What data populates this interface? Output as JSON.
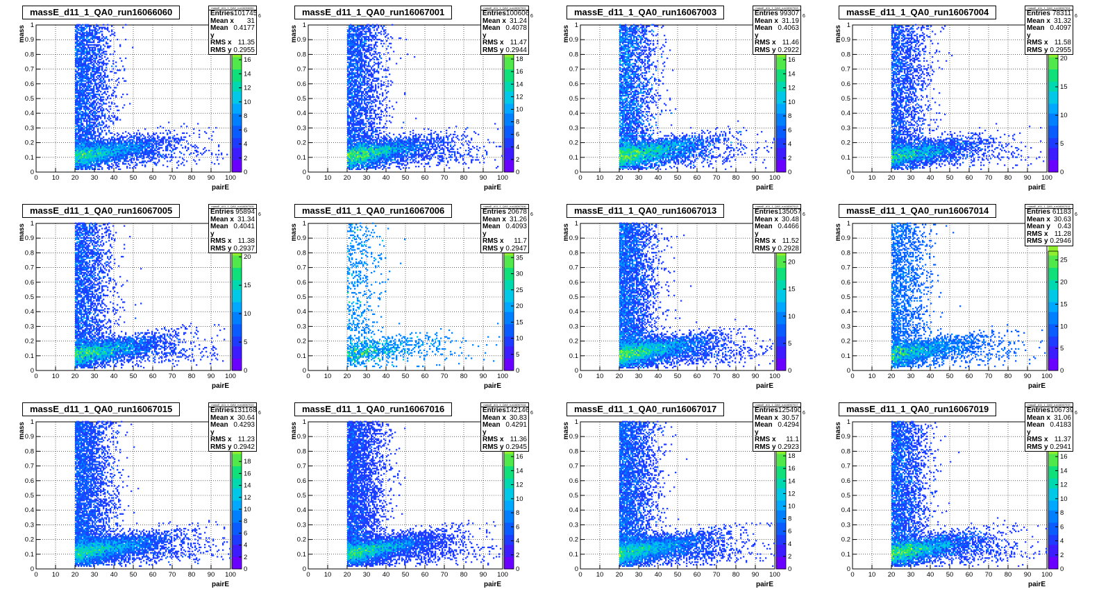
{
  "chart_data": [
    {
      "type": "heatmap",
      "title": "massE_d11_1_QA0_run16066060",
      "xlabel": "pairE",
      "ylabel": "mass",
      "xlim": [
        0,
        100
      ],
      "ylim": [
        0,
        1
      ],
      "stats": {
        "name": "massE_d11_1_QA0_run16066060",
        "entries": "101745",
        "mean_x": "31",
        "mean_y": "0.4177",
        "rms_x": "11.35",
        "rms_y": "0.2955"
      },
      "zmax": 17,
      "zticks": [
        0,
        2,
        4,
        6,
        8,
        10,
        12,
        14,
        16
      ],
      "z_exponent": "6"
    },
    {
      "type": "heatmap",
      "title": "massE_d11_1_QA0_run16067001",
      "xlabel": "pairE",
      "ylabel": "mass",
      "xlim": [
        0,
        100
      ],
      "ylim": [
        0,
        1
      ],
      "stats": {
        "name": "massE_d11_1_QA0_run16067001",
        "entries": "100606",
        "mean_x": "31.24",
        "mean_y": "0.4078",
        "rms_x": "11.47",
        "rms_y": "0.2944"
      },
      "zmax": 19,
      "zticks": [
        0,
        2,
        4,
        6,
        8,
        10,
        12,
        14,
        16,
        18
      ],
      "z_exponent": "6"
    },
    {
      "type": "heatmap",
      "title": "massE_d11_1_QA0_run16067003",
      "xlabel": "pairE",
      "ylabel": "mass",
      "xlim": [
        0,
        100
      ],
      "ylim": [
        0,
        1
      ],
      "stats": {
        "name": "massE_d11_1_QA0_run16067003",
        "entries": "99307",
        "mean_x": "31.19",
        "mean_y": "0.4063",
        "rms_x": "11.46",
        "rms_y": "0.2922"
      },
      "zmax": 17,
      "zticks": [
        0,
        2,
        4,
        6,
        8,
        10,
        12,
        14,
        16
      ],
      "z_exponent": "6"
    },
    {
      "type": "heatmap",
      "title": "massE_d11_1_QA0_run16067004",
      "xlabel": "pairE",
      "ylabel": "mass",
      "xlim": [
        0,
        100
      ],
      "ylim": [
        0,
        1
      ],
      "stats": {
        "name": "massE_d11_1_QA0_run16067004",
        "entries": "78311",
        "mean_x": "31.32",
        "mean_y": "0.4097",
        "rms_x": "11.58",
        "rms_y": "0.2955"
      },
      "zmax": 21,
      "zticks": [
        0,
        5,
        10,
        15,
        20
      ],
      "z_exponent": "6"
    },
    {
      "type": "heatmap",
      "title": "massE_d11_1_QA0_run16067005",
      "xlabel": "pairE",
      "ylabel": "mass",
      "xlim": [
        0,
        100
      ],
      "ylim": [
        0,
        1
      ],
      "stats": {
        "name": "massE_d11_1_QA0_run16067005",
        "entries": "95894",
        "mean_x": "31.34",
        "mean_y": "0.4041",
        "rms_x": "11.38",
        "rms_y": "0.2937"
      },
      "zmax": 21,
      "zticks": [
        0,
        5,
        10,
        15,
        20
      ],
      "z_exponent": "6"
    },
    {
      "type": "heatmap",
      "title": "massE_d11_1_QA0_run16067006",
      "xlabel": "pairE",
      "ylabel": "mass",
      "xlim": [
        0,
        100
      ],
      "ylim": [
        0,
        1
      ],
      "stats": {
        "name": "massE_d11_1_QA0_run16067006",
        "entries": "20678",
        "mean_x": "31.26",
        "mean_y": "0.4093",
        "rms_x": "11.7",
        "rms_y": "0.2947"
      },
      "zmax": 37,
      "zticks": [
        0,
        5,
        10,
        15,
        20,
        25,
        30,
        35
      ],
      "z_exponent": "6"
    },
    {
      "type": "heatmap",
      "title": "massE_d11_1_QA0_run16067013",
      "xlabel": "pairE",
      "ylabel": "mass",
      "xlim": [
        0,
        100
      ],
      "ylim": [
        0,
        1
      ],
      "stats": {
        "name": "massE_d11_1_QA0_run16067013",
        "entries": "135057",
        "mean_x": "30.48",
        "mean_y": "0.4466",
        "rms_x": "11.52",
        "rms_y": "0.2928"
      },
      "zmax": 22,
      "zticks": [
        0,
        5,
        10,
        15,
        20
      ],
      "z_exponent": "6"
    },
    {
      "type": "heatmap",
      "title": "massE_d11_1_QA0_run16067014",
      "xlabel": "pairE",
      "ylabel": "mass",
      "xlim": [
        0,
        100
      ],
      "ylim": [
        0,
        1
      ],
      "stats": {
        "name": "massE_d11_1_QA0_run16067014",
        "entries": "61183",
        "mean_x": "30.63",
        "mean_y": "0.43",
        "rms_x": "11.28",
        "rms_y": "0.2946"
      },
      "zmax": 27,
      "zticks": [
        0,
        5,
        10,
        15,
        20,
        25
      ],
      "z_exponent": "6"
    },
    {
      "type": "heatmap",
      "title": "massE_d11_1_QA0_run16067015",
      "xlabel": "pairE",
      "ylabel": "mass",
      "xlim": [
        0,
        100
      ],
      "ylim": [
        0,
        1
      ],
      "stats": {
        "name": "massE_d11_1_QA0_run16067015",
        "entries": "131168",
        "mean_x": "30.64",
        "mean_y": "0.4293",
        "rms_x": "11.23",
        "rms_y": "0.2942"
      },
      "zmax": 20,
      "zticks": [
        0,
        2,
        4,
        6,
        8,
        10,
        12,
        14,
        16,
        18,
        20
      ],
      "z_exponent": "6"
    },
    {
      "type": "heatmap",
      "title": "massE_d11_1_QA0_run16067016",
      "xlabel": "pairE",
      "ylabel": "mass",
      "xlim": [
        0,
        100
      ],
      "ylim": [
        0,
        1
      ],
      "stats": {
        "name": "massE_d11_1_QA0_run16067016",
        "entries": "142146",
        "mean_x": "30.83",
        "mean_y": "0.4291",
        "rms_x": "11.36",
        "rms_y": "0.2945"
      },
      "zmax": 17,
      "zticks": [
        0,
        2,
        4,
        6,
        8,
        10,
        12,
        14,
        16
      ],
      "z_exponent": "6"
    },
    {
      "type": "heatmap",
      "title": "massE_d11_1_QA0_run16067017",
      "xlabel": "pairE",
      "ylabel": "mass",
      "xlim": [
        0,
        100
      ],
      "ylim": [
        0,
        1
      ],
      "stats": {
        "name": "massE_d11_1_QA0_run16067017",
        "entries": "125490",
        "mean_x": "30.57",
        "mean_y": "0.4294",
        "rms_x": "11.1",
        "rms_y": "0.2923"
      },
      "zmax": 19,
      "zticks": [
        0,
        2,
        4,
        6,
        8,
        10,
        12,
        14,
        16,
        18
      ],
      "z_exponent": "6"
    },
    {
      "type": "heatmap",
      "title": "massE_d11_1_QA0_run16067019",
      "xlabel": "pairE",
      "ylabel": "mass",
      "xlim": [
        0,
        100
      ],
      "ylim": [
        0,
        1
      ],
      "stats": {
        "name": "massE_d11_1_QA0_run16067019",
        "entries": "106739",
        "mean_x": "31.06",
        "mean_y": "0.4183",
        "rms_x": "11.37",
        "rms_y": "0.2941"
      },
      "zmax": 17,
      "zticks": [
        0,
        2,
        4,
        6,
        8,
        10,
        12,
        14,
        16
      ],
      "z_exponent": "6"
    }
  ],
  "labels": {
    "entries": "Entries",
    "mean_x": "Mean x",
    "mean_y": "Mean y",
    "rms_x": "RMS x",
    "rms_y": "RMS y"
  },
  "xticks": [
    0,
    10,
    20,
    30,
    40,
    50,
    60,
    70,
    80,
    90,
    100
  ],
  "yticks": [
    0,
    0.1,
    0.2,
    0.3,
    0.4,
    0.5,
    0.6,
    0.7,
    0.8,
    0.9,
    1
  ],
  "palette": [
    "#6a00ff",
    "#3d1dff",
    "#1e3cff",
    "#0a5cff",
    "#0080ff",
    "#00a8ff",
    "#00c8e6",
    "#00d9b0",
    "#10e07a",
    "#50e84a",
    "#90ee30",
    "#c8f020",
    "#ffee00"
  ]
}
